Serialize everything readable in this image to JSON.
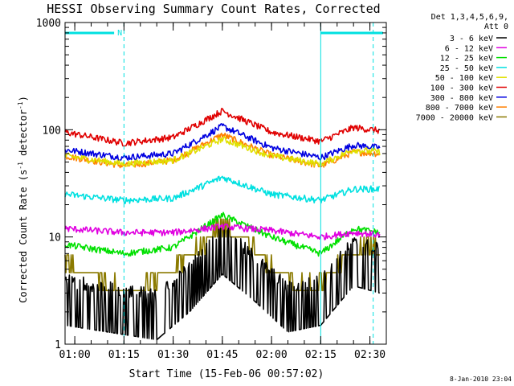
{
  "chart_data": {
    "type": "line",
    "title": "HESSI Observing Summary Count Rates, Corrected",
    "xlabel": "Start Time (15-Feb-06 00:57:02)",
    "ylabel_main": "Corrected Count Rate (s",
    "ylabel_sup1": "-1",
    "ylabel_mid": " detector",
    "ylabel_sup2": "-1",
    "ylabel_end": ")",
    "y_scale": "log",
    "ylim": [
      1,
      1000
    ],
    "xlim": [
      "00:57:02",
      "02:35:00"
    ],
    "y_ticks": [
      "1",
      "10",
      "100",
      "1000"
    ],
    "x_ticks": [
      "01:00",
      "01:15",
      "01:30",
      "01:45",
      "02:00",
      "02:15",
      "02:30"
    ],
    "legend_header": [
      "Det 1,3,4,5,6,9,",
      "Att 0"
    ],
    "legend_placement": "right",
    "footer_date": "8-Jan-2010 23:04",
    "night_marker_label": "N",
    "night_bars": [
      {
        "start": "00:57:02",
        "end": "01:12:00"
      },
      {
        "start": "02:15:00",
        "end": "02:34:00"
      }
    ],
    "vertical_markers": [
      "00:57:02",
      "01:15:00",
      "02:15:00",
      "02:31:00"
    ],
    "series": [
      {
        "name": "3 - 6 keV",
        "color": "#000000",
        "style": "noisy-low",
        "points": [
          [
            "00:57:02",
            1.5
          ],
          [
            "01:10",
            1.3
          ],
          [
            "01:25",
            1.1
          ],
          [
            "01:35",
            2.0
          ],
          [
            "01:45",
            4.5
          ],
          [
            "01:55",
            2.5
          ],
          [
            "02:05",
            1.3
          ],
          [
            "02:15",
            1.5
          ],
          [
            "02:25",
            3.5
          ],
          [
            "02:33",
            3.0
          ]
        ]
      },
      {
        "name": "6 - 12 keV",
        "color": "#e000e0",
        "points": [
          [
            "00:57:02",
            12
          ],
          [
            "01:15",
            11
          ],
          [
            "01:30",
            11
          ],
          [
            "01:45",
            12.5
          ],
          [
            "02:00",
            11.5
          ],
          [
            "02:15",
            10
          ],
          [
            "02:25",
            11
          ],
          [
            "02:33",
            10.5
          ]
        ]
      },
      {
        "name": "12 - 25 keV",
        "color": "#00e000",
        "points": [
          [
            "00:57:02",
            8.5
          ],
          [
            "01:15",
            7
          ],
          [
            "01:30",
            8
          ],
          [
            "01:45",
            16
          ],
          [
            "02:00",
            10
          ],
          [
            "02:15",
            7
          ],
          [
            "02:25",
            12
          ],
          [
            "02:33",
            11
          ]
        ]
      },
      {
        "name": "25 - 50 keV",
        "color": "#00e0e0",
        "points": [
          [
            "00:57:02",
            25
          ],
          [
            "01:15",
            22
          ],
          [
            "01:30",
            23
          ],
          [
            "01:45",
            36
          ],
          [
            "02:00",
            25
          ],
          [
            "02:15",
            22
          ],
          [
            "02:25",
            28
          ],
          [
            "02:33",
            28
          ]
        ]
      },
      {
        "name": "50 - 100 keV",
        "color": "#e0e000",
        "points": [
          [
            "00:57:02",
            57
          ],
          [
            "01:15",
            48
          ],
          [
            "01:30",
            52
          ],
          [
            "01:45",
            82
          ],
          [
            "02:00",
            57
          ],
          [
            "02:15",
            48
          ],
          [
            "02:25",
            65
          ],
          [
            "02:33",
            62
          ]
        ]
      },
      {
        "name": "100 - 300 keV",
        "color": "#e00000",
        "points": [
          [
            "00:57:02",
            95
          ],
          [
            "01:15",
            75
          ],
          [
            "01:30",
            85
          ],
          [
            "01:45",
            150
          ],
          [
            "02:00",
            95
          ],
          [
            "02:15",
            78
          ],
          [
            "02:25",
            105
          ],
          [
            "02:33",
            98
          ]
        ]
      },
      {
        "name": "300 - 800 keV",
        "color": "#0000e0",
        "points": [
          [
            "00:57:02",
            65
          ],
          [
            "01:15",
            55
          ],
          [
            "01:30",
            60
          ],
          [
            "01:45",
            108
          ],
          [
            "02:00",
            68
          ],
          [
            "02:15",
            55
          ],
          [
            "02:25",
            72
          ],
          [
            "02:33",
            68
          ]
        ]
      },
      {
        "name": "800 - 7000 keV",
        "color": "#ff8000",
        "points": [
          [
            "00:57:02",
            57
          ],
          [
            "01:15",
            46
          ],
          [
            "01:30",
            52
          ],
          [
            "01:45",
            90
          ],
          [
            "02:00",
            58
          ],
          [
            "02:15",
            46
          ],
          [
            "02:25",
            62
          ],
          [
            "02:33",
            60
          ]
        ]
      },
      {
        "name": "7000 - 20000 keV",
        "color": "#8b7a00",
        "style": "stepped",
        "points": [
          [
            "00:57:02",
            5.5
          ],
          [
            "01:05",
            4.5
          ],
          [
            "01:10",
            3.5
          ],
          [
            "01:20",
            3.3
          ],
          [
            "01:30",
            5
          ],
          [
            "01:38",
            8
          ],
          [
            "01:45",
            13
          ],
          [
            "01:52",
            9
          ],
          [
            "02:00",
            5
          ],
          [
            "02:08",
            3.5
          ],
          [
            "02:15",
            3.5
          ],
          [
            "02:22",
            6
          ],
          [
            "02:30",
            8
          ],
          [
            "02:33",
            7.5
          ]
        ]
      }
    ]
  }
}
